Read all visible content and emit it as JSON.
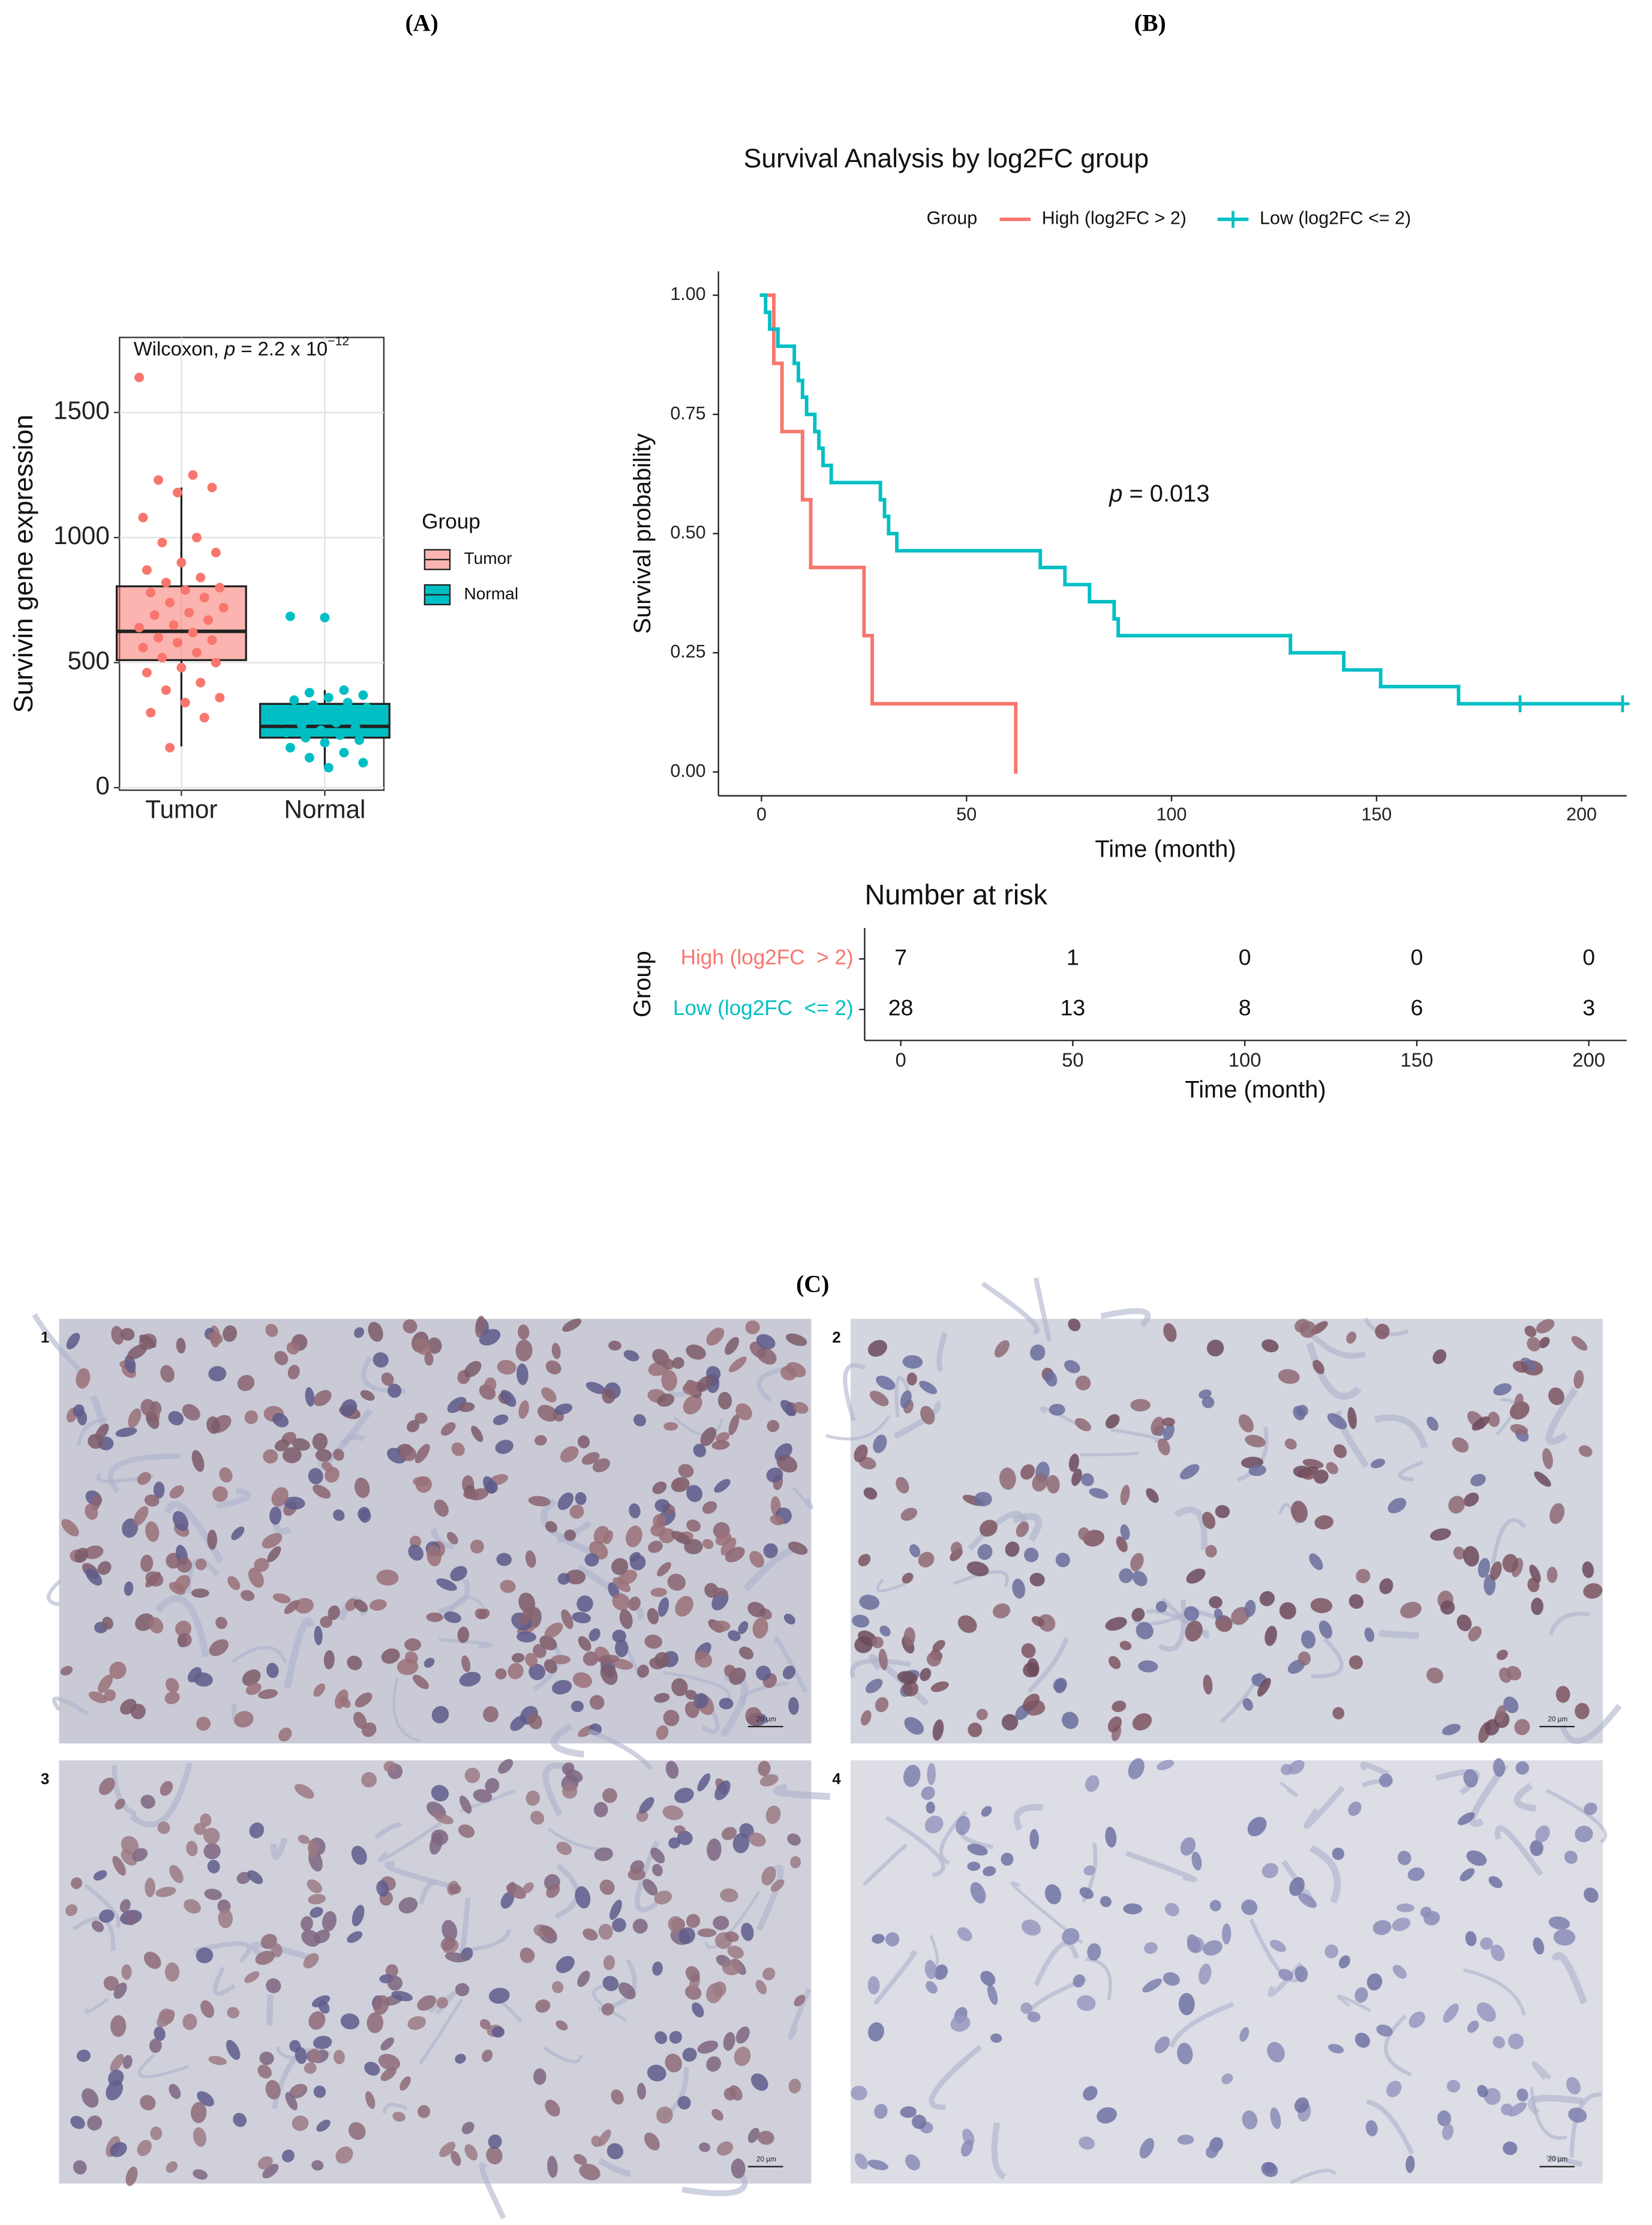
{
  "panel_labels": [
    "(A)",
    "(B)",
    "(C)"
  ],
  "chart_data": [
    {
      "type": "box",
      "annotation": {
        "method": "Wilcoxon, ",
        "p_symbol": "p",
        "p_text": " = 2.2 x 10",
        "p_exponent": "−12"
      },
      "y_label": "Survivin gene expression",
      "categories": [
        "Tumor",
        "Normal"
      ],
      "series": [
        {
          "name": "Tumor",
          "color": "#F8766D",
          "whisker_low": 165,
          "q1": 510,
          "median": 625,
          "q3": 805,
          "whisker_high": 1200,
          "points": [
            1640,
            1250,
            1230,
            1200,
            1180,
            1080,
            1000,
            980,
            940,
            900,
            870,
            840,
            820,
            800,
            790,
            780,
            760,
            740,
            720,
            700,
            690,
            670,
            650,
            640,
            620,
            600,
            590,
            580,
            560,
            540,
            520,
            500,
            480,
            460,
            420,
            390,
            360,
            340,
            300,
            280,
            160
          ]
        },
        {
          "name": "Normal",
          "color": "#00BFC4",
          "whisker_low": 80,
          "q1": 200,
          "median": 245,
          "q3": 335,
          "whisker_high": 390,
          "points": [
            680,
            685,
            390,
            380,
            370,
            360,
            350,
            340,
            330,
            320,
            310,
            300,
            290,
            280,
            270,
            260,
            250,
            240,
            230,
            220,
            210,
            200,
            190,
            180,
            160,
            140,
            120,
            100,
            80
          ]
        }
      ],
      "ylim": [
        -10,
        1800
      ],
      "yticks": [
        0,
        500,
        1000,
        1500
      ],
      "grid": true,
      "legend": {
        "title": "Group",
        "position": "right"
      }
    },
    {
      "type": "km",
      "title": "Survival Analysis by log2FC group",
      "x_label": "Time (month)",
      "y_label": "Survival probability",
      "annotation": {
        "p_symbol": "p",
        "p_text": " = 0.013"
      },
      "legend": {
        "title": "Group",
        "position": "top"
      },
      "series": [
        {
          "name": "High (log2FC > 2)",
          "color": "#F8766D",
          "x": [
            0,
            3,
            5,
            10,
            12,
            25,
            27,
            62
          ],
          "values": [
            1,
            0.857,
            0.714,
            0.571,
            0.429,
            0.286,
            0.143,
            0
          ]
        },
        {
          "name": "Low (log2FC <= 2)",
          "color": "#00BFC4",
          "x": [
            0,
            1,
            2,
            4,
            8,
            9,
            10,
            11,
            13,
            14,
            15,
            17,
            29,
            30,
            31,
            33,
            68,
            74,
            80,
            86,
            87,
            129,
            142,
            151,
            170
          ],
          "values": [
            1,
            0.964,
            0.929,
            0.893,
            0.857,
            0.821,
            0.786,
            0.75,
            0.714,
            0.679,
            0.643,
            0.607,
            0.571,
            0.536,
            0.5,
            0.464,
            0.429,
            0.393,
            0.357,
            0.321,
            0.286,
            0.25,
            0.214,
            0.179,
            0.143
          ],
          "censor_x": [
            185,
            210
          ],
          "censor_values": [
            0.143,
            0.143
          ]
        }
      ],
      "xlim": [
        -10.5,
        211
      ],
      "ylim": [
        -0.05,
        1.05
      ],
      "xticks": [
        0,
        50,
        100,
        150,
        200
      ],
      "yticks": [
        {
          "value": 0,
          "label": "0.00"
        },
        {
          "value": 0.25,
          "label": "0.25"
        },
        {
          "value": 0.5,
          "label": "0.50"
        },
        {
          "value": 0.75,
          "label": "0.75"
        },
        {
          "value": 1,
          "label": "1.00"
        }
      ],
      "grid": false
    },
    {
      "type": "risk_table",
      "title": "Number at risk",
      "y_label": "Group",
      "x_label": "Time (month)",
      "x": [
        0,
        50,
        100,
        150,
        200
      ],
      "series": [
        {
          "name": "High (log2FC  > 2)",
          "color": "#F8766D",
          "values": [
            7,
            1,
            0,
            0,
            0
          ]
        },
        {
          "name": "Low (log2FC  <= 2)",
          "color": "#00BFC4",
          "values": [
            28,
            13,
            8,
            6,
            3
          ]
        }
      ],
      "xlim": [
        -10.5,
        211
      ],
      "xticks": [
        0,
        50,
        100,
        150,
        200
      ]
    }
  ],
  "micrographs": {
    "panels": [
      {
        "number": "1",
        "scale_bar": "20 µm"
      },
      {
        "number": "2",
        "scale_bar": "20 µm"
      },
      {
        "number": "3",
        "scale_bar": "20 µm"
      },
      {
        "number": "4",
        "scale_bar": "20 µm"
      }
    ]
  }
}
